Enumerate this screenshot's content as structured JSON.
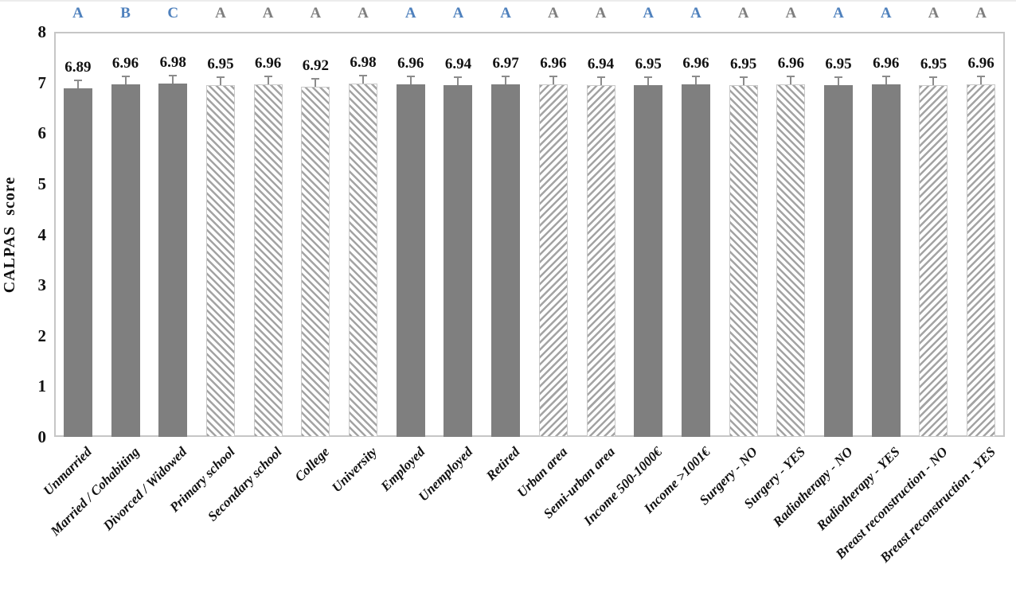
{
  "palette": {
    "bar_solid": "#7f7f7f",
    "hatch_stripe": "#a3a3a3",
    "hatch_bg": "#ffffff",
    "hatch_border": "#c9c9c9",
    "letter_blue": "#4f81bd",
    "letter_gray": "#7f7f7f",
    "error_bar": "#8c8c8c",
    "plot_border": "#c6c6c6",
    "text": "#111111"
  },
  "chart_data": {
    "type": "bar",
    "title": "",
    "xlabel": "",
    "ylabel": "CALPAS score",
    "ylim": [
      0,
      8
    ],
    "yticks": [
      "0",
      "1",
      "2",
      "3",
      "4",
      "5",
      "6",
      "7",
      "8"
    ],
    "grid": false,
    "legend": false,
    "error_bar_upper": 0.13,
    "categories": [
      "Unmarried",
      "Married / Cohabiting",
      "Divorced / Widowed",
      "Primary school",
      "Secondary school",
      "College",
      "University",
      "Employed",
      "Unemployed",
      "Retired",
      "Urban area",
      "Semi-urban area",
      "Income 500-1000€",
      "Income >1001€",
      "Surgery - NO",
      "Surgery - YES",
      "Radiotherapy - NO",
      "Radiotherapy - YES",
      "Breast reconstruction - NO",
      "Breast reconstruction - YES"
    ],
    "values": [
      6.89,
      6.96,
      6.98,
      6.95,
      6.96,
      6.92,
      6.98,
      6.96,
      6.94,
      6.97,
      6.96,
      6.94,
      6.95,
      6.96,
      6.95,
      6.96,
      6.95,
      6.96,
      6.95,
      6.96
    ],
    "value_labels": [
      "6.89",
      "6.96",
      "6.98",
      "6.95",
      "6.96",
      "6.92",
      "6.98",
      "6.96",
      "6.94",
      "6.97",
      "6.96",
      "6.94",
      "6.95",
      "6.96",
      "6.95",
      "6.96",
      "6.95",
      "6.96",
      "6.95",
      "6.96"
    ],
    "significance_letters": [
      "A",
      "B",
      "C",
      "A",
      "A",
      "A",
      "A",
      "A",
      "A",
      "A",
      "A",
      "A",
      "A",
      "A",
      "A",
      "A",
      "A",
      "A",
      "A",
      "A"
    ],
    "significance_letter_colors": [
      "blue",
      "blue",
      "blue",
      "gray",
      "gray",
      "gray",
      "gray",
      "blue",
      "blue",
      "blue",
      "gray",
      "gray",
      "blue",
      "blue",
      "gray",
      "gray",
      "blue",
      "blue",
      "gray",
      "gray"
    ],
    "bar_styles": [
      "solid",
      "solid",
      "solid",
      "hatch_back",
      "hatch_back",
      "hatch_back",
      "hatch_back",
      "solid",
      "solid",
      "solid",
      "hatch_fwd",
      "hatch_fwd",
      "solid",
      "solid",
      "hatch_back",
      "hatch_back",
      "solid",
      "solid",
      "hatch_fwd",
      "hatch_fwd"
    ]
  }
}
